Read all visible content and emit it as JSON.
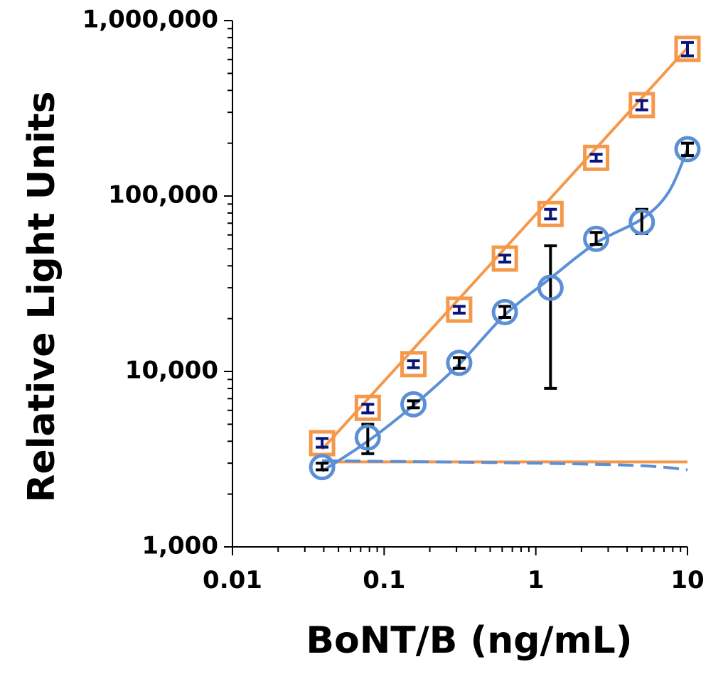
{
  "chart_data": {
    "type": "scatter",
    "xscale": "log",
    "yscale": "log",
    "xlabel": "BoNT/B (ng/mL)",
    "ylabel": "Relative Light Units",
    "xlim": [
      0.01,
      10
    ],
    "ylim": [
      1000,
      1000000
    ],
    "x_ticks": [
      0.01,
      0.1,
      1,
      10
    ],
    "x_tick_labels": [
      "0.01",
      "0.1",
      "1",
      "10"
    ],
    "y_ticks": [
      1000,
      10000,
      100000,
      1000000
    ],
    "y_tick_labels": [
      "1,000",
      "10,000",
      "100,000",
      "1,000,000"
    ],
    "series": [
      {
        "name": "orange-squares",
        "marker": "square",
        "color": "#f5984a",
        "error_color": "#0a1478",
        "points": [
          {
            "x": 0.039,
            "y": 3900,
            "lo": 3700,
            "hi": 4150
          },
          {
            "x": 0.078,
            "y": 6200,
            "lo": 5800,
            "hi": 6500
          },
          {
            "x": 0.156,
            "y": 11000,
            "lo": 10500,
            "hi": 11500
          },
          {
            "x": 0.3125,
            "y": 22500,
            "lo": 21500,
            "hi": 23500
          },
          {
            "x": 0.625,
            "y": 44000,
            "lo": 42000,
            "hi": 46000
          },
          {
            "x": 1.25,
            "y": 79000,
            "lo": 74000,
            "hi": 84000
          },
          {
            "x": 2.5,
            "y": 165000,
            "lo": 158000,
            "hi": 173000
          },
          {
            "x": 5,
            "y": 330000,
            "lo": 310000,
            "hi": 350000
          },
          {
            "x": 10,
            "y": 690000,
            "lo": 630000,
            "hi": 750000
          }
        ],
        "fit": {
          "x": [
            0.039,
            10
          ],
          "y": [
            3600,
            700000
          ],
          "style": "solid"
        }
      },
      {
        "name": "blue-circles",
        "marker": "circle",
        "color": "#5b8fd6",
        "error_color": "#000000",
        "points": [
          {
            "x": 0.039,
            "y": 2850,
            "lo": 2750,
            "hi": 3000
          },
          {
            "x": 0.078,
            "y": 4200,
            "lo": 3400,
            "hi": 5000
          },
          {
            "x": 0.156,
            "y": 6500,
            "lo": 6200,
            "hi": 6800
          },
          {
            "x": 0.3125,
            "y": 11200,
            "lo": 10400,
            "hi": 12000
          },
          {
            "x": 0.625,
            "y": 21800,
            "lo": 20300,
            "hi": 23500
          },
          {
            "x": 1.25,
            "y": 30000,
            "lo": 8000,
            "hi": 52000
          },
          {
            "x": 2.5,
            "y": 57000,
            "lo": 53000,
            "hi": 62000
          },
          {
            "x": 5,
            "y": 71000,
            "lo": 61000,
            "hi": 84000
          },
          {
            "x": 10,
            "y": 185000,
            "lo": 170000,
            "hi": 200000
          }
        ],
        "fit": {
          "x": [
            0.039,
            0.078,
            0.156,
            0.3125,
            0.625,
            1.25,
            2.5,
            5,
            7.5,
            10
          ],
          "y": [
            2700,
            4000,
            6400,
            11000,
            21000,
            34000,
            54000,
            74000,
            105000,
            185000
          ],
          "style": "solid"
        }
      }
    ],
    "baselines": [
      {
        "name": "orange-baseline",
        "color": "#f5984a",
        "style": "solid",
        "x": [
          0.039,
          10
        ],
        "y": [
          3050,
          3050
        ]
      },
      {
        "name": "blue-baseline",
        "color": "#5b8fd6",
        "style": "dashed",
        "x": [
          0.039,
          1,
          5,
          10
        ],
        "y": [
          3100,
          3000,
          2900,
          2750
        ]
      }
    ]
  }
}
